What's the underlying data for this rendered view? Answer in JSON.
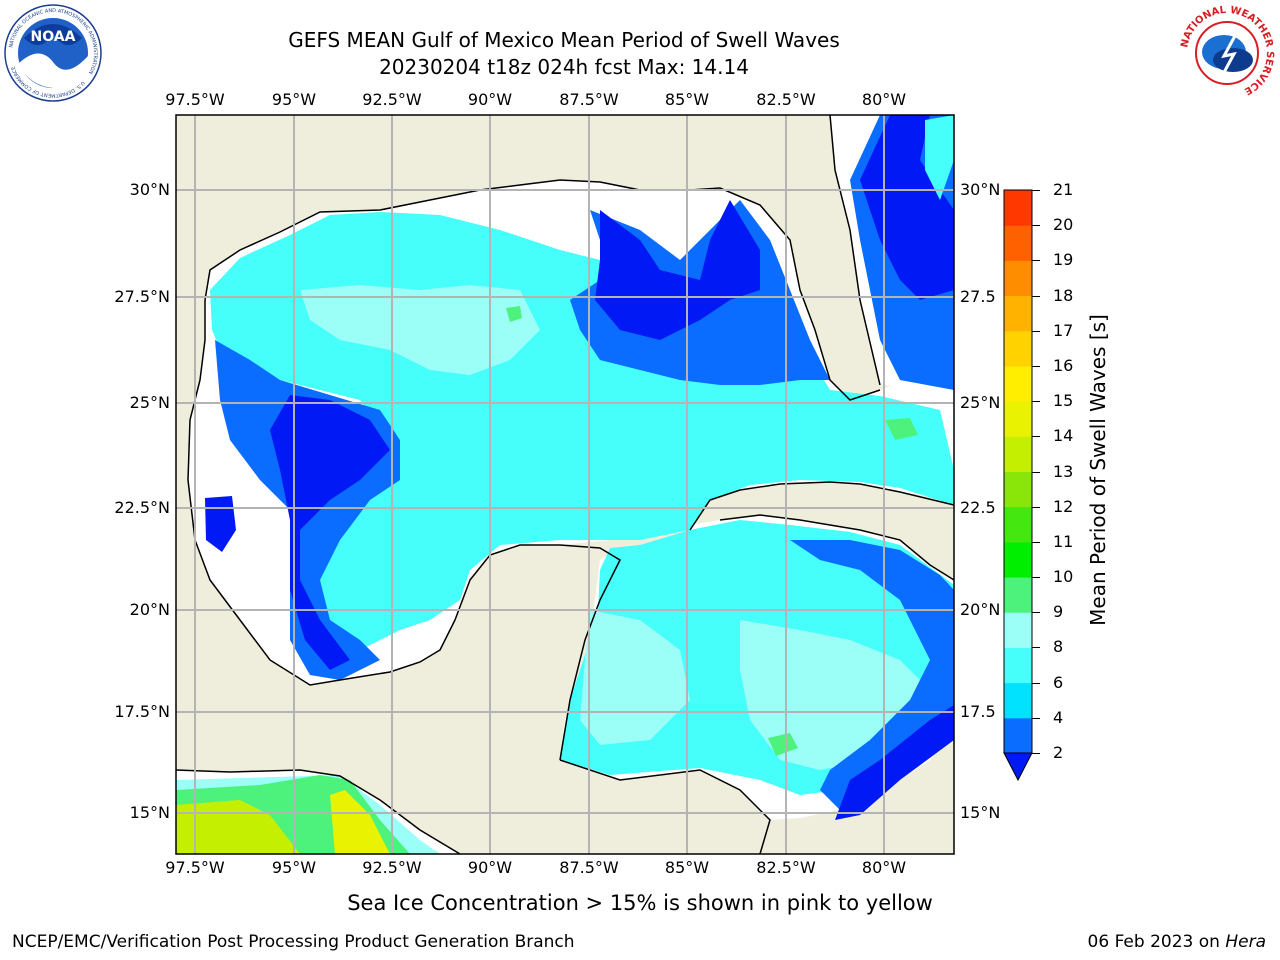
{
  "title": {
    "line1": "GEFS MEAN Gulf of Mexico Mean Period of Swell Waves",
    "line2": "20230204 t18z 024h fcst   Max: 14.14"
  },
  "logos": {
    "noaa_text": "NOAA",
    "noaa_ring_top": "NATIONAL OCEANIC AND ATMOSPHERIC ADMINISTRATION",
    "noaa_ring_bottom": "U.S. DEPARTMENT OF COMMERCE",
    "nws_ring": "NATIONAL WEATHER SERVICE"
  },
  "map": {
    "lon_labels": [
      "97.5°W",
      "95°W",
      "92.5°W",
      "90°W",
      "87.5°W",
      "85°W",
      "82.5°W",
      "80°W"
    ],
    "lat_labels_left": [
      "30°N",
      "27.5°N",
      "25°N",
      "22.5°N",
      "20°N",
      "17.5°N",
      "15°N"
    ],
    "lat_labels_right": [
      "30°N",
      "27.5",
      "25°N",
      "22.5",
      "20°N",
      "17.5",
      "15°N"
    ],
    "colors": {
      "land": "#efeedc",
      "sea_none": "#ffffff",
      "grid": "#b4b4b4"
    }
  },
  "colorbar": {
    "label": "Mean Period of Swell Waves [s]",
    "ticks": [
      "2",
      "4",
      "6",
      "8",
      "9",
      "10",
      "11",
      "12",
      "13",
      "14",
      "15",
      "16",
      "17",
      "18",
      "19",
      "20",
      "21"
    ],
    "colors": [
      "#0a6dff",
      "#00e2ff",
      "#46fffa",
      "#9bfff8",
      "#4df27c",
      "#00ee00",
      "#44e710",
      "#8ae608",
      "#c4ef00",
      "#e9f200",
      "#ffee00",
      "#ffd200",
      "#ffb200",
      "#ff8d00",
      "#ff6000",
      "#ff3800"
    ],
    "under_color": "#0019f5"
  },
  "note": "Sea Ice Concentration > 15% is shown in pink to yellow",
  "footer": {
    "left": "NCEP/EMC/Verification Post Processing Product Generation Branch",
    "right_date": "06 Feb 2023 on ",
    "right_host": "Hera"
  }
}
